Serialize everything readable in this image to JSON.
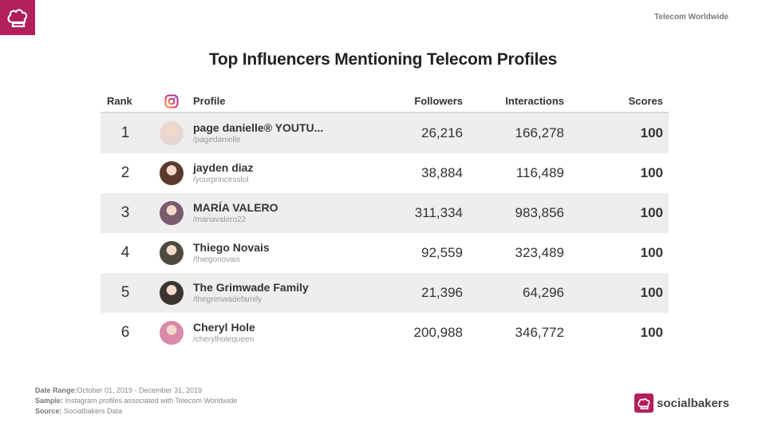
{
  "header": {
    "logo_icon": "chef-hat-icon",
    "company": "Telecom Worldwide",
    "title": "Top Influencers Mentioning Telecom Profiles"
  },
  "table": {
    "columns": {
      "rank": "Rank",
      "network_icon": "instagram-icon",
      "profile": "Profile",
      "followers": "Followers",
      "interactions": "Interactions",
      "scores": "Scores"
    },
    "rows": [
      {
        "rank": "1",
        "name": "page danielle® YOUTU...",
        "handle": "/pagedanielle",
        "followers": "26,216",
        "interactions": "166,278",
        "score": "100",
        "avatar_color": "#e8d6d0"
      },
      {
        "rank": "2",
        "name": "jayden diaz",
        "handle": "/yourprincesslol",
        "followers": "38,884",
        "interactions": "116,489",
        "score": "100",
        "avatar_color": "#5a3a2c"
      },
      {
        "rank": "3",
        "name": "MARÍA VALERO",
        "handle": "/mariavalero22",
        "followers": "311,334",
        "interactions": "983,856",
        "score": "100",
        "avatar_color": "#7a5c6e"
      },
      {
        "rank": "4",
        "name": "Thiego Novais",
        "handle": "/thiegonovais",
        "followers": "92,559",
        "interactions": "323,489",
        "score": "100",
        "avatar_color": "#4d4a3e"
      },
      {
        "rank": "5",
        "name": "The Grimwade Family",
        "handle": "/thegrimwadefamily",
        "followers": "21,396",
        "interactions": "64,296",
        "score": "100",
        "avatar_color": "#3b3530"
      },
      {
        "rank": "6",
        "name": "Cheryl Hole",
        "handle": "/cherylholequeen",
        "followers": "200,988",
        "interactions": "346,772",
        "score": "100",
        "avatar_color": "#d98aa8"
      }
    ]
  },
  "footer": {
    "date_label": "Date Range:",
    "date_value": "October 01, 2019 - December 31, 2019",
    "sample_label": "Sample:",
    "sample_value": "Instagram profiles associated with Telecom Worldwide",
    "source_label": "Source:",
    "source_value": "Socialbakers Data"
  },
  "brand": {
    "name": "socialbakers",
    "icon": "chef-hat-icon"
  },
  "colors": {
    "accent": "#b11f5c",
    "row_shade": "#eeeeef"
  }
}
